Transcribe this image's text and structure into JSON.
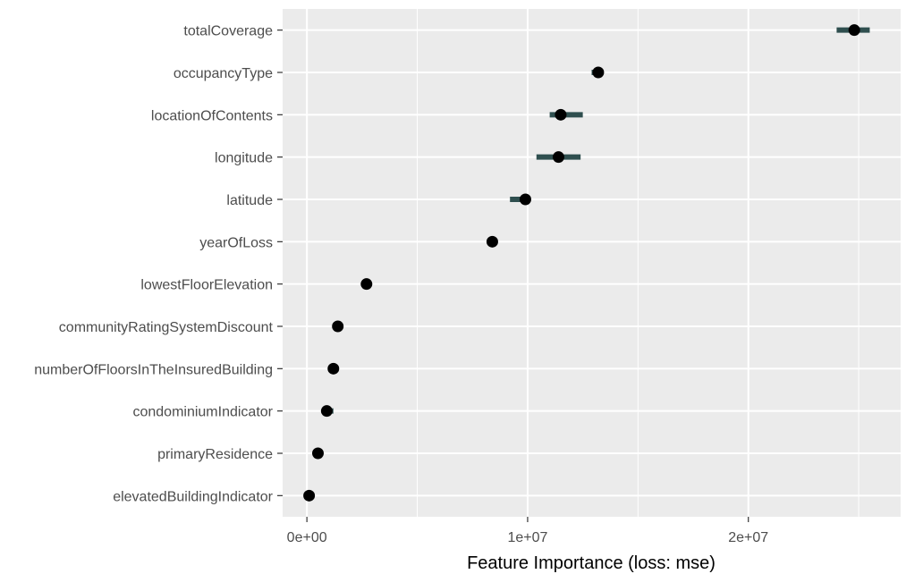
{
  "chart_data": {
    "type": "scatter",
    "xlabel": "Feature Importance (loss: mse)",
    "ylabel": "",
    "xlim": [
      -1100000,
      26900000
    ],
    "grid": true,
    "x_ticks": [
      {
        "value": 0,
        "label": "0e+00"
      },
      {
        "value": 10000000,
        "label": "1e+07"
      },
      {
        "value": 20000000,
        "label": "2e+07"
      }
    ],
    "x_minor_ticks": [
      5000000,
      15000000,
      25000000
    ],
    "features": [
      {
        "name": "totalCoverage",
        "importance": 24800000,
        "low": 24000000,
        "high": 25500000
      },
      {
        "name": "occupancyType",
        "importance": 13200000,
        "low": 12900000,
        "high": 13400000
      },
      {
        "name": "locationOfContents",
        "importance": 11500000,
        "low": 11000000,
        "high": 12500000
      },
      {
        "name": "longitude",
        "importance": 11400000,
        "low": 10400000,
        "high": 12400000
      },
      {
        "name": "latitude",
        "importance": 9900000,
        "low": 9200000,
        "high": 10100000
      },
      {
        "name": "yearOfLoss",
        "importance": 8400000,
        "low": 8300000,
        "high": 8500000
      },
      {
        "name": "lowestFloorElevation",
        "importance": 2700000,
        "low": 2600000,
        "high": 2800000
      },
      {
        "name": "communityRatingSystemDiscount",
        "importance": 1400000,
        "low": 1300000,
        "high": 1500000
      },
      {
        "name": "numberOfFloorsInTheInsuredBuilding",
        "importance": 1200000,
        "low": 1100000,
        "high": 1300000
      },
      {
        "name": "condominiumIndicator",
        "importance": 900000,
        "low": 700000,
        "high": 1200000
      },
      {
        "name": "primaryResidence",
        "importance": 500000,
        "low": 400000,
        "high": 600000
      },
      {
        "name": "elevatedBuildingIndicator",
        "importance": 100000,
        "low": 0,
        "high": 200000
      }
    ],
    "colors": {
      "panel": "#ebebeb",
      "gridline": "#ffffff",
      "interval": "#2f4f4f",
      "point": "#000000",
      "tick_text": "#4d4d4d",
      "axis_title": "#000000"
    }
  }
}
